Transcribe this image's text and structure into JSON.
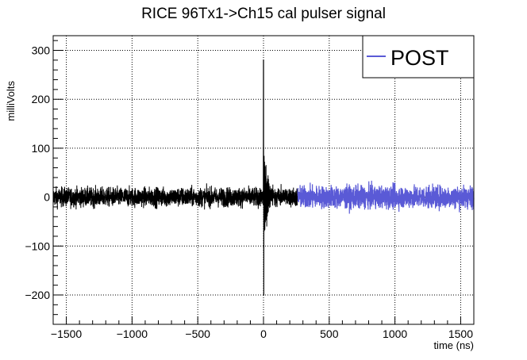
{
  "chart_data": {
    "type": "line",
    "title": "RICE 96Tx1->Ch15 cal pulser signal",
    "xlabel": "time (ns)",
    "ylabel": "milliVolts",
    "xlim": [
      -1600,
      1600
    ],
    "ylim": [
      -260,
      330
    ],
    "xticks": [
      -1500,
      -1000,
      -500,
      0,
      500,
      1000,
      1500
    ],
    "xtick_labels": [
      "−1500",
      "−1000",
      "−500",
      "0",
      "500",
      "1000",
      "1500"
    ],
    "yticks": [
      -200,
      -100,
      0,
      100,
      200,
      300
    ],
    "ytick_labels": [
      "−200",
      "−100",
      "0",
      "100",
      "200",
      "300"
    ],
    "grid": true,
    "legend": {
      "position": "top-right",
      "entries": [
        {
          "label": "POST",
          "color": "#5a5ad6"
        }
      ]
    },
    "series": [
      {
        "color": "#000000",
        "x_range": [
          -1600,
          260
        ],
        "noise_amplitude_mv": 12,
        "pulse": {
          "t": 0,
          "peak_max": 280,
          "peak_min": -200
        }
      },
      {
        "name": "POST",
        "color": "#5a5ad6",
        "x_range": [
          260,
          1600
        ],
        "noise_amplitude_mv": 14
      }
    ]
  }
}
